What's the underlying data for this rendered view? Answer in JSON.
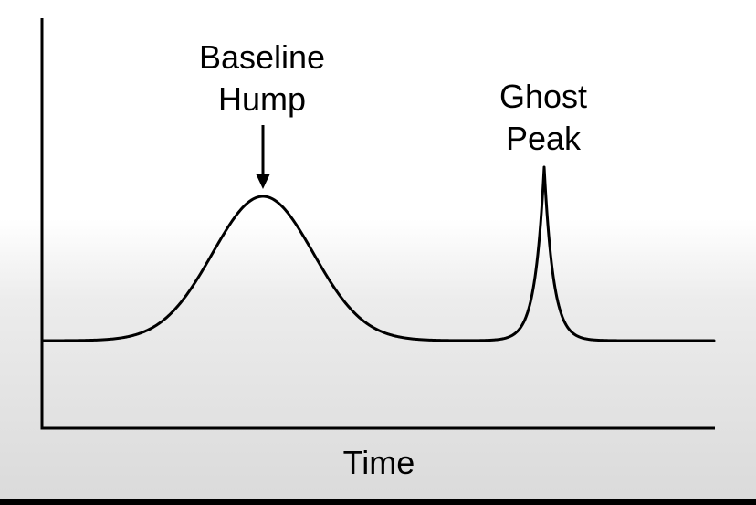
{
  "annotations": {
    "hump_line1": "Baseline",
    "hump_line2": "Hump",
    "peak_line1": "Ghost",
    "peak_line2": "Peak"
  },
  "axes": {
    "x_label": "Time"
  },
  "colors": {
    "line": "#000000",
    "background_top": "#ffffff",
    "background_bottom": "#dadada"
  }
}
